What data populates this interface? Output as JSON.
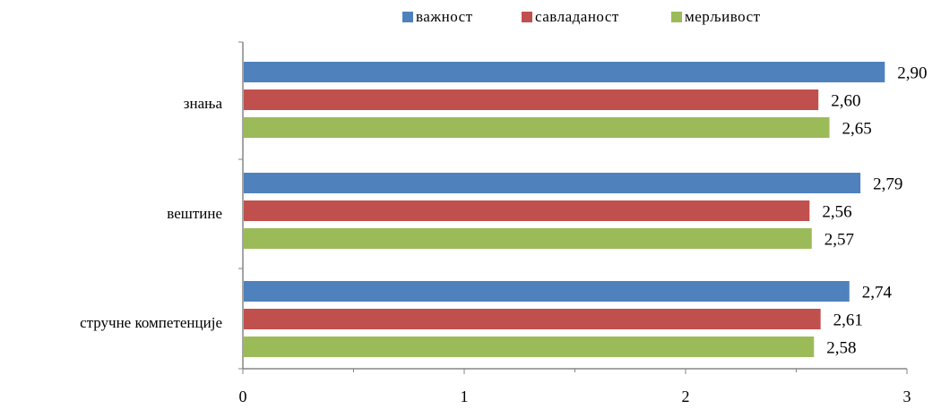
{
  "chart_data": {
    "type": "bar",
    "orientation": "horizontal",
    "categories": [
      "знања",
      "вештине",
      "стручне компетенције"
    ],
    "series": [
      {
        "name": "важност",
        "color": "#4F81BD",
        "values": [
          2.9,
          2.79,
          2.74
        ]
      },
      {
        "name": "савладаност",
        "color": "#C0504D",
        "values": [
          2.6,
          2.56,
          2.61
        ]
      },
      {
        "name": "мерљивост",
        "color": "#9BBB59",
        "values": [
          2.65,
          2.57,
          2.58
        ]
      }
    ],
    "value_labels": [
      [
        "2,90",
        "2,79",
        "2,74"
      ],
      [
        "2,60",
        "2,56",
        "2,61"
      ],
      [
        "2,65",
        "2,57",
        "2,58"
      ]
    ],
    "x_ticks": [
      "0",
      "1",
      "2",
      "3"
    ],
    "xlim": [
      0,
      3
    ],
    "grid": false,
    "legend": "top"
  }
}
